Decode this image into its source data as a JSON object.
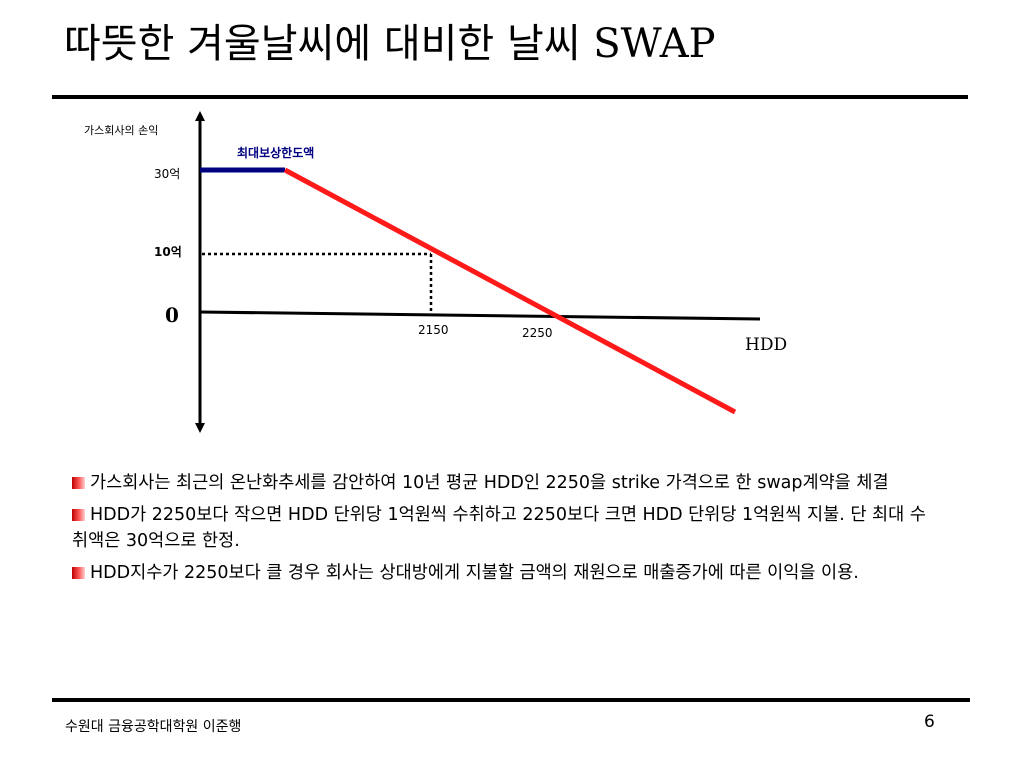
{
  "slide": {
    "title": "따뜻한 겨울날씨에 대비한 날씨 SWAP",
    "footer_text": "수원대 금융공학대학원 이준행",
    "page_number": "6"
  },
  "diagram": {
    "y_axis_label": "가스회사의 손익",
    "cap_label": "최대보상한도액",
    "label_30": "30억",
    "label_10": "10억",
    "label_zero": "0",
    "label_2150": "2150",
    "label_2250": "2250",
    "x_axis_label": "HDD",
    "colors": {
      "payoff_line": "#ff1a1a",
      "cap_line": "#000080",
      "cap_label": "#000080"
    }
  },
  "bullets": [
    {
      "text": "가스회사는 최근의 온난화추세를 감안하여 10년 평균 HDD인 2250을 strike 가격으로 한 swap계약을 체결"
    },
    {
      "text": "HDD가 2250보다 작으면 HDD 단위당 1억원씩 수취하고 2250보다 크면 HDD 단위당 1억원씩 지불. 단 최대 수취액은 30억으로 한정."
    },
    {
      "text": "HDD지수가 2250보다 클 경우 회사는 상대방에게 지불할 금액의 재원으로 매출증가에 따른 이익을 이용."
    }
  ]
}
